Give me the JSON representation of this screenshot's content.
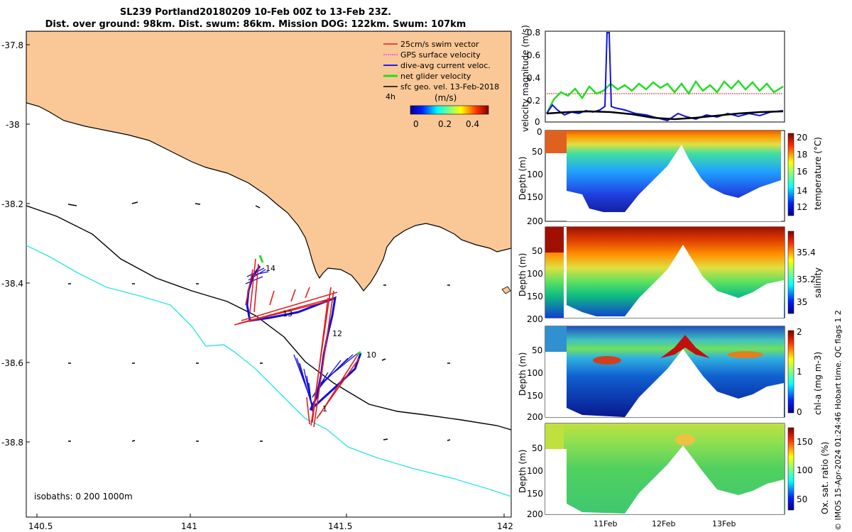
{
  "title": {
    "line1": "SL239 Portland20180209 10-Feb 00Z to 13-Feb 23Z.",
    "line2": "Dist. over ground: 98km. Dist. swum: 86km. Mission DOG: 122km. Swum: 107km"
  },
  "map": {
    "lat_ticks": [
      "-37.8",
      "-38",
      "-38.2",
      "-38.4",
      "-38.6",
      "-38.8"
    ],
    "lon_ticks": [
      "140.5",
      "141",
      "141.5",
      "142"
    ],
    "legend": [
      {
        "label": "25cm/s swim vector",
        "color": "#e02020"
      },
      {
        "label": "GPS surface velocity",
        "color": "#ff40ff"
      },
      {
        "label": "dive-avg current veloc.",
        "color": "#2020e0"
      },
      {
        "label": "net glider velocity",
        "color": "#22dd22"
      },
      {
        "label": "sfc geo. vel. 13-Feb-2018",
        "color": "#000000"
      }
    ],
    "colorbar": {
      "title": "(m/s)",
      "interval": "4h",
      "ticks": [
        "0",
        "0.2",
        "0.4"
      ]
    },
    "isobaths_label": "isobaths: 0   200  1000m",
    "point_labels": [
      "14",
      "13",
      "12",
      "10",
      "1"
    ]
  },
  "panels": {
    "velocity": {
      "ylabel": "velocity magnitude (m/s)",
      "yticks": [
        "0.8",
        "0.6",
        "0.4",
        "0.2",
        "0"
      ]
    },
    "depth": {
      "ylabel": "Depth (m)",
      "yticks": [
        "0",
        "50",
        "100",
        "150",
        "200"
      ]
    },
    "temperature": {
      "label": "temperature (°C)",
      "ticks": [
        "20",
        "18",
        "16",
        "14",
        "12"
      ]
    },
    "salinity": {
      "label": "salinity",
      "ticks": [
        "35.4",
        "35.2",
        "35"
      ]
    },
    "chla": {
      "label": "chl-a (mg m-3)",
      "ticks": [
        "2",
        "1",
        "0"
      ]
    },
    "oxygen": {
      "label": "Ox. sat. ratio (%)",
      "ticks": [
        "150",
        "100",
        "50"
      ]
    },
    "xticks": [
      "11Feb",
      "12Feb",
      "13Feb"
    ]
  },
  "side_note": "© IMOS 15-Apr-2024 01:24:46 Hobart time. QC flags 1  2",
  "chart_data": [
    {
      "type": "scatter",
      "title": "SL239 Portland20180209 10-Feb 00Z to 13-Feb 23Z.",
      "xlim": [
        140.45,
        142.02
      ],
      "ylim": [
        -38.98,
        -37.74
      ],
      "track_labels": [
        {
          "label": "14",
          "x": 141.25,
          "y": -38.36
        },
        {
          "label": "13",
          "x": 141.3,
          "y": -38.49
        },
        {
          "label": "12",
          "x": 141.45,
          "y": -38.53
        },
        {
          "label": "10",
          "x": 141.53,
          "y": -38.58
        },
        {
          "label": "1",
          "x": 141.41,
          "y": -38.72
        }
      ]
    },
    {
      "type": "line",
      "ylabel": "velocity magnitude (m/s)",
      "ylim": [
        0,
        0.8
      ],
      "x_days": [
        10.0,
        10.5,
        11.0,
        11.5,
        12.0,
        12.5,
        13.0,
        13.5,
        13.95
      ],
      "series": [
        {
          "name": "net glider velocity",
          "values": [
            0.05,
            0.25,
            0.28,
            0.3,
            0.28,
            0.3,
            0.32,
            0.3,
            0.28
          ]
        },
        {
          "name": "dive-avg current veloc.",
          "values": [
            0.1,
            0.05,
            0.8,
            0.08,
            0.07,
            0.05,
            0.04,
            0.06,
            0.08
          ]
        },
        {
          "name": "sfc geo. vel.",
          "values": [
            0.08,
            0.08,
            0.1,
            0.08,
            0.05,
            0.02,
            0.04,
            0.07,
            0.09
          ]
        },
        {
          "name": "25cm/s swim vector",
          "values": [
            0.25,
            0.25,
            0.25,
            0.25,
            0.25,
            0.25,
            0.25,
            0.25,
            0.25
          ]
        }
      ]
    }
  ]
}
